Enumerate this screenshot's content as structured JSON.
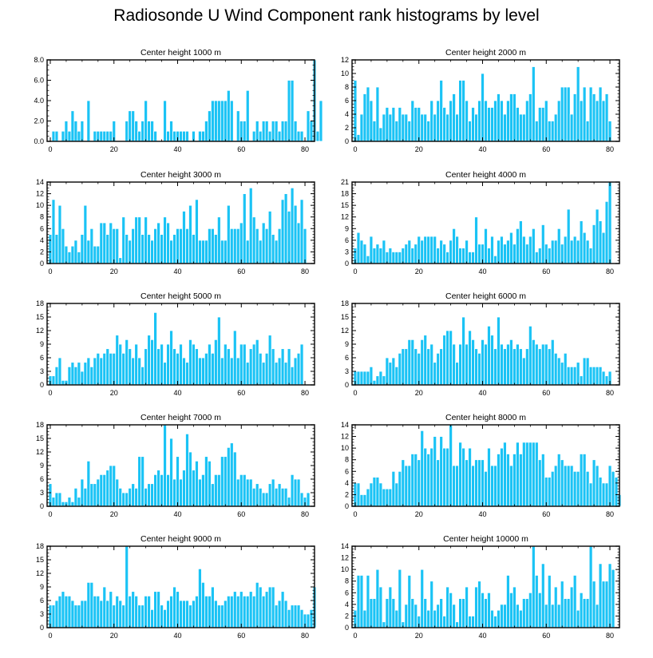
{
  "title": "Radiosonde U Wind Component rank histograms by level",
  "colors": {
    "bar": "#1ac3f5",
    "bar_edge": "#ffffff",
    "axis": "#000000",
    "frame": "#222222"
  },
  "chart_data": [
    {
      "type": "bar",
      "title": "Center height 1000 m",
      "x_start": 0,
      "xlim": [
        -1,
        83
      ],
      "ylim": [
        0,
        8
      ],
      "xticks": [
        0,
        20,
        40,
        60,
        80
      ],
      "yticks": [
        0,
        2,
        4,
        6,
        8
      ],
      "ytick_labels": [
        "0.0",
        "2.0",
        "4.0",
        "6.0",
        "8.0"
      ],
      "values": [
        0,
        1,
        1,
        0,
        1,
        2,
        1,
        3,
        2,
        1,
        2,
        0,
        4,
        0,
        1,
        1,
        1,
        1,
        1,
        1,
        2,
        0,
        0,
        0,
        2,
        3,
        3,
        2,
        1,
        2,
        4,
        2,
        2,
        1,
        0,
        0,
        4,
        1,
        2,
        1,
        1,
        1,
        1,
        1,
        0,
        1,
        0,
        1,
        1,
        2,
        3,
        4,
        4,
        4,
        4,
        4,
        5,
        4,
        0,
        3,
        2,
        2,
        5,
        0,
        1,
        2,
        1,
        2,
        2,
        1,
        2,
        2,
        1,
        2,
        2,
        6,
        6,
        2,
        1,
        1,
        0,
        3,
        2,
        8,
        1,
        4
      ]
    },
    {
      "type": "bar",
      "title": "Center height 2000 m",
      "x_start": 0,
      "xlim": [
        -1,
        83
      ],
      "ylim": [
        0,
        12
      ],
      "xticks": [
        0,
        20,
        40,
        60,
        80
      ],
      "yticks": [
        0,
        2,
        4,
        6,
        8,
        10,
        12
      ],
      "ytick_labels": [
        "0",
        "2",
        "4",
        "6",
        "8",
        "10",
        "12"
      ],
      "values": [
        9,
        1,
        4,
        7,
        8,
        6,
        3,
        8,
        2,
        4,
        5,
        4,
        5,
        3,
        5,
        4,
        4,
        3,
        6,
        5,
        5,
        4,
        4,
        3,
        6,
        4,
        6,
        9,
        5,
        4,
        6,
        7,
        4,
        9,
        9,
        6,
        3,
        5,
        4,
        6,
        10,
        6,
        5,
        5,
        6,
        7,
        6,
        4,
        6,
        7,
        7,
        5,
        4,
        4,
        6,
        7,
        11,
        3,
        5,
        5,
        6,
        3,
        3,
        4,
        6,
        8,
        8,
        8,
        4,
        7,
        11,
        6,
        8,
        3,
        8,
        7,
        6,
        8,
        6,
        7,
        3
      ]
    },
    {
      "type": "bar",
      "title": "Center height 3000 m",
      "x_start": 0,
      "xlim": [
        -1,
        83
      ],
      "ylim": [
        0,
        14
      ],
      "xticks": [
        0,
        20,
        40,
        60,
        80
      ],
      "yticks": [
        0,
        2,
        4,
        6,
        8,
        10,
        12,
        14
      ],
      "ytick_labels": [
        "0",
        "2",
        "4",
        "6",
        "8",
        "10",
        "12",
        "14"
      ],
      "values": [
        5,
        11,
        5,
        10,
        6,
        3,
        2,
        3,
        4,
        2,
        5,
        10,
        4,
        6,
        3,
        3,
        7,
        7,
        5,
        7,
        6,
        6,
        1,
        8,
        5,
        4,
        6,
        8,
        8,
        5,
        8,
        5,
        4,
        6,
        7,
        5,
        8,
        7,
        4,
        5,
        6,
        6,
        9,
        6,
        10,
        5,
        11,
        4,
        4,
        4,
        6,
        6,
        5,
        8,
        4,
        4,
        10,
        6,
        6,
        6,
        7,
        12,
        4,
        13,
        8,
        6,
        4,
        7,
        6,
        9,
        5,
        4,
        6,
        11,
        12,
        9,
        13,
        10,
        7,
        11,
        6
      ]
    },
    {
      "type": "bar",
      "title": "Center height 4000 m",
      "x_start": 0,
      "xlim": [
        -1,
        83
      ],
      "ylim": [
        0,
        21
      ],
      "xticks": [
        0,
        20,
        40,
        60,
        80
      ],
      "yticks": [
        0,
        3,
        6,
        9,
        12,
        15,
        18,
        21
      ],
      "ytick_labels": [
        "0",
        "3",
        "6",
        "9",
        "12",
        "15",
        "18",
        "21"
      ],
      "values": [
        4,
        8,
        6,
        5,
        2,
        7,
        4,
        5,
        4,
        6,
        3,
        4,
        3,
        3,
        3,
        4,
        5,
        6,
        4,
        5,
        7,
        6,
        7,
        7,
        7,
        7,
        4,
        6,
        5,
        3,
        6,
        9,
        7,
        4,
        4,
        6,
        3,
        3,
        12,
        5,
        5,
        9,
        4,
        7,
        2,
        6,
        7,
        5,
        6,
        8,
        5,
        9,
        11,
        7,
        5,
        7,
        9,
        3,
        4,
        10,
        5,
        4,
        6,
        6,
        9,
        5,
        7,
        14,
        6,
        7,
        6,
        11,
        8,
        6,
        4,
        10,
        14,
        11,
        8,
        16,
        21
      ]
    },
    {
      "type": "bar",
      "title": "Center height 5000 m",
      "x_start": 0,
      "xlim": [
        -1,
        83
      ],
      "ylim": [
        0,
        18
      ],
      "xticks": [
        0,
        20,
        40,
        60,
        80
      ],
      "yticks": [
        0,
        3,
        6,
        9,
        12,
        15,
        18
      ],
      "ytick_labels": [
        "0",
        "3",
        "6",
        "9",
        "12",
        "15",
        "18"
      ],
      "values": [
        2,
        2,
        4,
        6,
        1,
        1,
        4,
        5,
        4,
        5,
        3,
        5,
        6,
        4,
        6,
        7,
        6,
        7,
        8,
        7,
        7,
        11,
        9,
        7,
        10,
        8,
        6,
        9,
        6,
        4,
        8,
        11,
        10,
        16,
        8,
        9,
        5,
        9,
        12,
        8,
        7,
        9,
        6,
        5,
        10,
        9,
        8,
        6,
        6,
        7,
        9,
        7,
        10,
        15,
        6,
        9,
        8,
        6,
        12,
        6,
        9,
        9,
        5,
        8,
        9,
        10,
        7,
        5,
        7,
        11,
        8,
        5,
        6,
        8,
        5,
        8,
        4,
        6,
        7,
        9
      ]
    },
    {
      "type": "bar",
      "title": "Center height 6000 m",
      "x_start": 0,
      "xlim": [
        -1,
        83
      ],
      "ylim": [
        0,
        18
      ],
      "xticks": [
        0,
        20,
        40,
        60,
        80
      ],
      "yticks": [
        0,
        3,
        6,
        9,
        12,
        15,
        18
      ],
      "ytick_labels": [
        "0",
        "3",
        "6",
        "9",
        "12",
        "15",
        "18"
      ],
      "values": [
        3,
        3,
        3,
        3,
        3,
        4,
        1,
        2,
        3,
        2,
        6,
        5,
        6,
        4,
        7,
        8,
        8,
        10,
        10,
        8,
        7,
        10,
        11,
        8,
        9,
        5,
        7,
        8,
        11,
        12,
        12,
        9,
        5,
        9,
        15,
        9,
        12,
        10,
        8,
        7,
        10,
        9,
        13,
        11,
        8,
        15,
        9,
        8,
        9,
        10,
        8,
        9,
        8,
        6,
        8,
        13,
        10,
        9,
        8,
        9,
        9,
        8,
        10,
        7,
        6,
        5,
        7,
        4,
        4,
        4,
        5,
        2,
        6,
        6,
        4,
        4,
        4,
        4,
        3,
        2,
        3
      ]
    },
    {
      "type": "bar",
      "title": "Center height 7000 m",
      "x_start": 0,
      "xlim": [
        -1,
        83
      ],
      "ylim": [
        0,
        18
      ],
      "xticks": [
        0,
        20,
        40,
        60,
        80
      ],
      "yticks": [
        0,
        3,
        6,
        9,
        12,
        15,
        18
      ],
      "ytick_labels": [
        "0",
        "3",
        "6",
        "9",
        "12",
        "15",
        "18"
      ],
      "values": [
        5,
        2,
        3,
        3,
        1,
        1,
        2,
        1,
        4,
        2,
        6,
        4,
        10,
        5,
        5,
        6,
        7,
        7,
        8,
        9,
        9,
        6,
        4,
        3,
        3,
        4,
        5,
        4,
        11,
        11,
        4,
        5,
        5,
        7,
        8,
        7,
        18,
        7,
        15,
        6,
        11,
        6,
        8,
        16,
        12,
        8,
        10,
        6,
        7,
        11,
        10,
        5,
        7,
        7,
        11,
        11,
        13,
        14,
        12,
        6,
        7,
        7,
        6,
        6,
        4,
        5,
        4,
        3,
        3,
        5,
        6,
        4,
        5,
        4,
        4,
        2,
        7,
        6,
        6,
        3,
        2,
        3
      ]
    },
    {
      "type": "bar",
      "title": "Center height 8000 m",
      "x_start": 0,
      "xlim": [
        -1,
        83
      ],
      "ylim": [
        0,
        14
      ],
      "xticks": [
        0,
        20,
        40,
        60,
        80
      ],
      "yticks": [
        0,
        2,
        4,
        6,
        8,
        10,
        12,
        14
      ],
      "ytick_labels": [
        "0",
        "2",
        "4",
        "6",
        "8",
        "10",
        "12",
        "14"
      ],
      "values": [
        4,
        4,
        2,
        2,
        3,
        4,
        5,
        5,
        4,
        3,
        3,
        3,
        6,
        4,
        6,
        8,
        7,
        7,
        9,
        9,
        8,
        13,
        10,
        9,
        10,
        12,
        8,
        12,
        10,
        10,
        14,
        7,
        7,
        11,
        10,
        8,
        10,
        7,
        8,
        8,
        8,
        6,
        10,
        7,
        7,
        9,
        10,
        11,
        9,
        7,
        9,
        11,
        9,
        11,
        11,
        11,
        11,
        11,
        8,
        9,
        5,
        5,
        6,
        7,
        9,
        8,
        7,
        7,
        7,
        6,
        6,
        9,
        9,
        6,
        4,
        8,
        7,
        5,
        4,
        4,
        7,
        6,
        5,
        2
      ]
    },
    {
      "type": "bar",
      "title": "Center height 9000 m",
      "x_start": 0,
      "xlim": [
        -1,
        83
      ],
      "ylim": [
        0,
        18
      ],
      "xticks": [
        0,
        20,
        40,
        60,
        80
      ],
      "yticks": [
        0,
        3,
        6,
        9,
        12,
        15,
        18
      ],
      "ytick_labels": [
        "0",
        "3",
        "6",
        "9",
        "12",
        "15",
        "18"
      ],
      "values": [
        5,
        5,
        6,
        7,
        8,
        7,
        7,
        6,
        5,
        5,
        6,
        6,
        10,
        10,
        7,
        7,
        6,
        9,
        6,
        8,
        5,
        7,
        6,
        5,
        18,
        7,
        8,
        7,
        5,
        5,
        7,
        7,
        4,
        8,
        8,
        5,
        4,
        6,
        7,
        9,
        8,
        6,
        6,
        6,
        5,
        6,
        7,
        13,
        10,
        7,
        7,
        9,
        6,
        5,
        5,
        6,
        7,
        7,
        8,
        7,
        8,
        7,
        7,
        8,
        7,
        10,
        9,
        7,
        8,
        9,
        9,
        5,
        6,
        8,
        6,
        4,
        5,
        5,
        5,
        4,
        3,
        3,
        4,
        9
      ]
    },
    {
      "type": "bar",
      "title": "Center height 10000 m",
      "x_start": 0,
      "xlim": [
        -1,
        83
      ],
      "ylim": [
        0,
        14
      ],
      "xticks": [
        0,
        20,
        40,
        60,
        80
      ],
      "yticks": [
        0,
        2,
        4,
        6,
        8,
        10,
        12,
        14
      ],
      "ytick_labels": [
        "0",
        "2",
        "4",
        "6",
        "8",
        "10",
        "12",
        "14"
      ],
      "values": [
        3,
        9,
        9,
        3,
        9,
        5,
        5,
        10,
        7,
        1,
        5,
        7,
        5,
        3,
        10,
        1,
        4,
        9,
        5,
        4,
        2,
        10,
        5,
        3,
        8,
        3,
        4,
        5,
        2,
        7,
        6,
        4,
        1,
        5,
        5,
        7,
        2,
        2,
        7,
        8,
        6,
        5,
        6,
        3,
        2,
        3,
        4,
        4,
        9,
        6,
        7,
        4,
        3,
        5,
        5,
        6,
        14,
        9,
        6,
        11,
        4,
        9,
        4,
        7,
        4,
        8,
        5,
        5,
        7,
        9,
        3,
        6,
        5,
        5,
        14,
        8,
        4,
        11,
        8,
        8,
        11,
        10
      ]
    }
  ]
}
